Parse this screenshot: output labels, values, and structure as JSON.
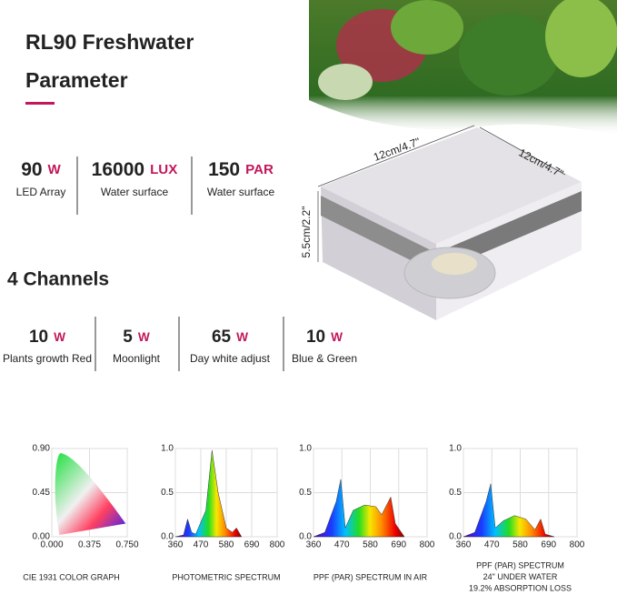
{
  "header": {
    "title": "RL90 Freshwater",
    "subtitle": "Parameter"
  },
  "specs": [
    {
      "value": "90",
      "unit": "W",
      "label": "LED Array"
    },
    {
      "value": "16000",
      "unit": "LUX",
      "label": "Water surface"
    },
    {
      "value": "150",
      "unit": "PAR",
      "label": "Water surface"
    }
  ],
  "dimensions": {
    "width": "12cm/4.7\"",
    "depth": "12cm/4.7\"",
    "height": "5.5cm/2.2\""
  },
  "channels_title": "4 Channels",
  "channels": [
    {
      "value": "10",
      "unit": "W",
      "label": "Plants growth Red"
    },
    {
      "value": "5",
      "unit": "W",
      "label": "Moonlight"
    },
    {
      "value": "65",
      "unit": "W",
      "label": "Day white adjust"
    },
    {
      "value": "10",
      "unit": "W",
      "label": "Blue & Green"
    }
  ],
  "graphs": [
    {
      "caption": [
        "CIE 1931 COLOR GRAPH"
      ],
      "yticks": [
        "0.90",
        "0.45",
        "0.00"
      ],
      "xticks": [
        "0.000",
        "0.375",
        "0.750"
      ]
    },
    {
      "caption": [
        "PHOTOMETRIC SPECTRUM"
      ],
      "yticks": [
        "1.0",
        "0.5",
        "0.0"
      ],
      "xticks": [
        "360",
        "470",
        "580",
        "690",
        "800"
      ]
    },
    {
      "caption": [
        "PPF (PAR) SPECTRUM IN AIR"
      ],
      "yticks": [
        "1.0",
        "0.5",
        "0.0"
      ],
      "xticks": [
        "360",
        "470",
        "580",
        "690",
        "800"
      ]
    },
    {
      "caption": [
        "PPF (PAR) SPECTRUM",
        "24\"  UNDER WATER",
        "19.2% ABSORPTION LOSS"
      ],
      "yticks": [
        "1.0",
        "0.5",
        "0.0"
      ],
      "xticks": [
        "360",
        "470",
        "580",
        "690",
        "800"
      ]
    }
  ]
}
